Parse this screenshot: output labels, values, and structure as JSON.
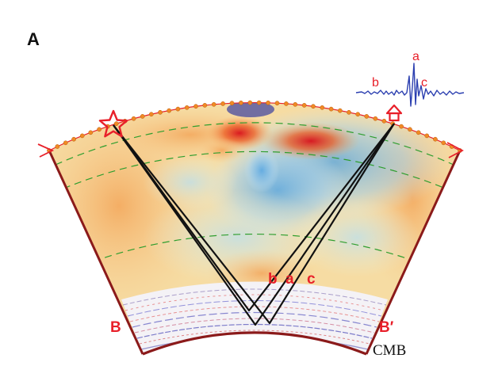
{
  "panel_label": "A",
  "labels": {
    "b_left": "B",
    "b_right": "B′",
    "cmb": "CMB"
  },
  "ray_labels": {
    "b": "b",
    "a": "a",
    "c": "c"
  },
  "waveform_labels": {
    "a": "a",
    "b": "b",
    "c": "c"
  },
  "colors": {
    "section_border": "#8b1a1a",
    "rays": "#111111",
    "depth_contours": "#2e9e2e",
    "stations": "#f08a24",
    "source_star": "#e8202a",
    "labels_red": "#e8202a",
    "waveform": "#2b3fb0",
    "hot_anomaly": "#e8201a",
    "cold_anomaly": "#4aa3e8",
    "background_anomaly": "#f4d59a"
  },
  "icons": {
    "source": "star-icon",
    "receiver": "arrow-up-icon"
  }
}
